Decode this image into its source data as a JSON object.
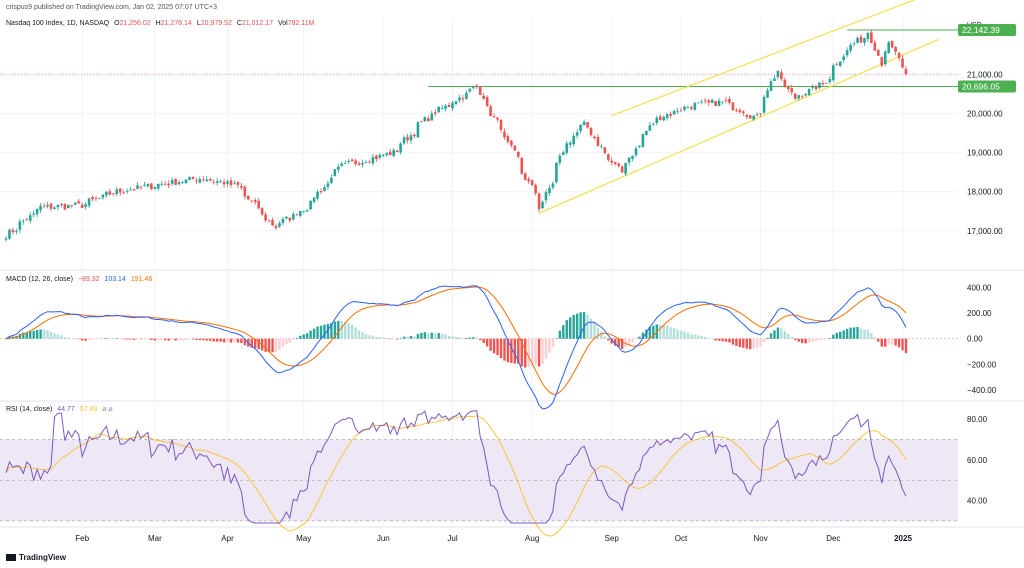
{
  "header": {
    "publisher": "crispus9 published on TradingView.com, Jan 02, 2025 07:07 UTC+3"
  },
  "branding": {
    "logo_text": "TradingView",
    "logo_icon": "tradingview-logo-icon"
  },
  "colors": {
    "up": "#26a69a",
    "down": "#ef5350",
    "channel": "#f5e04a",
    "level": "#4caf50",
    "macd": "#2962ff",
    "signal": "#ff6d00",
    "rsi": "#7e57c2",
    "rsi_ma": "#fbc02d",
    "rsi_band": "#ede7f6"
  },
  "chart_data": [
    {
      "type": "candlestick",
      "title": "Nasdaq 100 Index, 1D, NASDAQ",
      "ohlc_label": {
        "o": "21,256.02",
        "h": "21,276.14",
        "l": "20,979.52",
        "c": "21,012.17",
        "vol": "782.11M"
      },
      "currency": "USD",
      "ylim": [
        16200,
        22450
      ],
      "yticks": [
        17000,
        18000,
        19000,
        20000,
        21000
      ],
      "ytick_labels": [
        "17,000.00",
        "18,000.00",
        "19,000.00",
        "20,000.00",
        "21,000.00"
      ],
      "x_labels": [
        "Feb",
        "Mar",
        "Apr",
        "May",
        "Jun",
        "Jul",
        "Aug",
        "Sep",
        "Oct",
        "Nov",
        "Dec",
        "2025"
      ],
      "price_levels": [
        {
          "value": 22142.39,
          "label": "22,142.39",
          "start_date": "2024-12-06"
        },
        {
          "value": 20696.05,
          "label": "20,696.05",
          "start_date": "2024-06-20"
        }
      ],
      "channel_lines": [
        {
          "from": [
            "2024-08-05",
            17450
          ],
          "to": [
            "2025-01-01",
            21700
          ]
        },
        {
          "from": [
            "2024-09-03",
            19950
          ],
          "to": [
            "2025-01-01",
            22950
          ]
        }
      ],
      "anchors": [
        [
          "2024-01-02",
          16900
        ],
        [
          "2024-01-16",
          17600
        ],
        [
          "2024-02-01",
          17650
        ],
        [
          "2024-02-15",
          18000
        ],
        [
          "2024-03-05",
          18200
        ],
        [
          "2024-03-21",
          18350
        ],
        [
          "2024-04-04",
          18150
        ],
        [
          "2024-04-19",
          17100
        ],
        [
          "2024-05-02",
          17600
        ],
        [
          "2024-05-16",
          18650
        ],
        [
          "2024-06-06",
          19000
        ],
        [
          "2024-06-20",
          19900
        ],
        [
          "2024-07-10",
          20680
        ],
        [
          "2024-07-24",
          19100
        ],
        [
          "2024-08-05",
          17600
        ],
        [
          "2024-08-15",
          19200
        ],
        [
          "2024-08-22",
          19700
        ],
        [
          "2024-09-06",
          18500
        ],
        [
          "2024-09-20",
          19850
        ],
        [
          "2024-10-04",
          20200
        ],
        [
          "2024-10-18",
          20300
        ],
        [
          "2024-10-31",
          19900
        ],
        [
          "2024-11-08",
          21100
        ],
        [
          "2024-11-15",
          20400
        ],
        [
          "2024-11-27",
          20750
        ],
        [
          "2024-12-06",
          21600
        ],
        [
          "2024-12-16",
          22100
        ],
        [
          "2024-12-20",
          21300
        ],
        [
          "2024-12-24",
          21750
        ],
        [
          "2024-12-31",
          21012
        ]
      ]
    },
    {
      "type": "line+histogram",
      "title": "MACD (12, 26, close)",
      "values_label": {
        "hist": "−89.32",
        "macd": "103.14",
        "signal": "191.46"
      },
      "ylim": [
        -480,
        460
      ],
      "yticks": [
        400,
        200,
        0,
        -200,
        -400
      ],
      "ytick_labels": [
        "400.00",
        "200.00",
        "0.00",
        "−200.00",
        "−400.00"
      ]
    },
    {
      "type": "line",
      "title": "RSI (14, close)",
      "values_label": {
        "rsi": "44.77",
        "ma": "57.43"
      },
      "ylim": [
        28,
        86
      ],
      "bands": [
        70,
        50,
        30
      ],
      "yticks": [
        80,
        60,
        40
      ],
      "ytick_labels": [
        "80.00",
        "60.00",
        "40.00"
      ]
    }
  ]
}
